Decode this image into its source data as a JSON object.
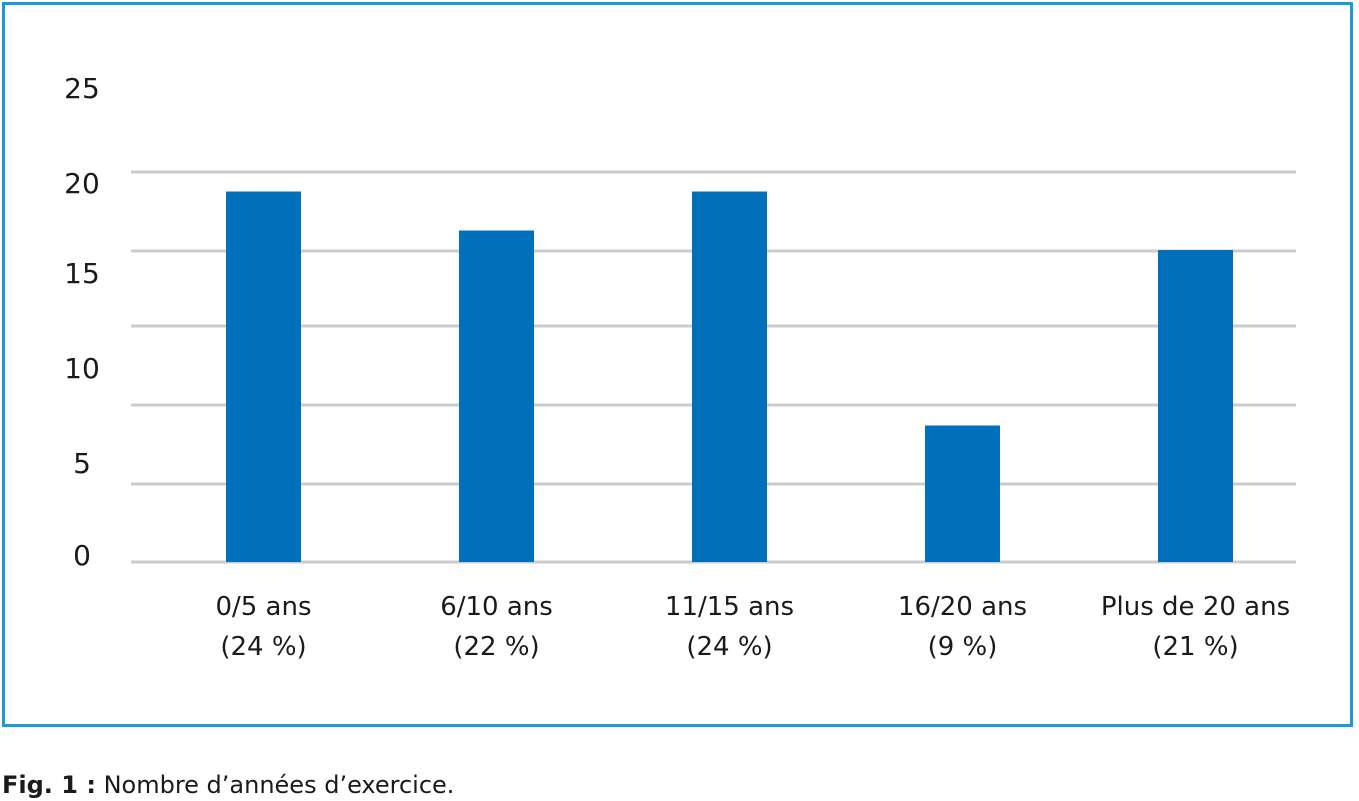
{
  "chart_data": {
    "type": "bar",
    "categories": [
      [
        "0/5 ans",
        "(24 %)"
      ],
      [
        "6/10 ans",
        "(22 %)"
      ],
      [
        "11/15 ans",
        "(24 %)"
      ],
      [
        "16/20 ans",
        "(9 %)"
      ],
      [
        "Plus de 20 ans",
        "(21 %)"
      ]
    ],
    "values": [
      19,
      17,
      19,
      7,
      16
    ],
    "ylim": [
      0,
      25
    ],
    "yticks": [
      0,
      5,
      10,
      15,
      20,
      25
    ],
    "grid": true,
    "bar_color": "#0070bb",
    "grid_color": "#cccccc"
  },
  "frame_color": "#1a9ad6",
  "caption": {
    "label": "Fig. 1 :",
    "text": " Nombre d’années d’exercice."
  }
}
